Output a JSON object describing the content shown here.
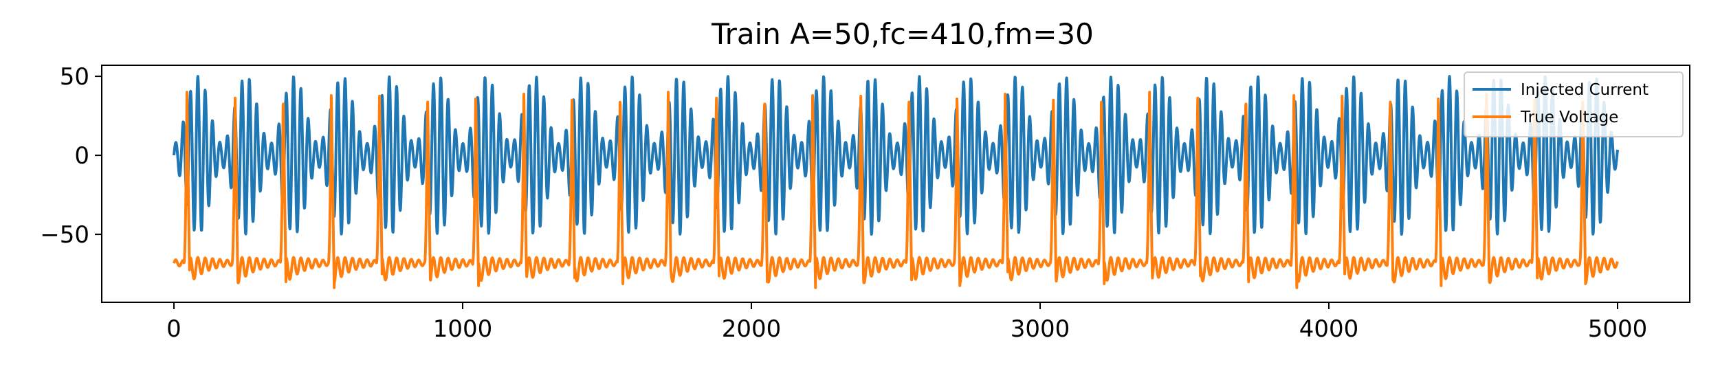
{
  "chart_data": {
    "type": "line",
    "title": "Train A=50,fc=410,fm=30",
    "xlabel": "",
    "ylabel": "",
    "xlim": [
      -250,
      5250
    ],
    "ylim": [
      -93,
      57
    ],
    "x_ticks": [
      0,
      1000,
      2000,
      3000,
      4000,
      5000
    ],
    "x_tick_labels": [
      "0",
      "1000",
      "2000",
      "3000",
      "4000",
      "5000"
    ],
    "y_ticks": [
      50,
      0,
      -50
    ],
    "y_tick_labels": [
      "50",
      "0",
      "−50"
    ],
    "grid": false,
    "legend_position": "top-right",
    "x_range": [
      0,
      5000
    ],
    "series": [
      {
        "name": "Injected Current",
        "color": "#1f77b4",
        "model": "amplitude-modulated sinusoid",
        "amplitude": 50,
        "carrier_period": 25.5,
        "modulation_period": 166.7
      },
      {
        "name": "True Voltage",
        "color": "#ff7f0e",
        "model": "periodic action-potential train",
        "spike_period": 166.7,
        "spike_first": 45,
        "spike_peak": 40,
        "baseline": -68,
        "undershoot": -85
      }
    ]
  }
}
